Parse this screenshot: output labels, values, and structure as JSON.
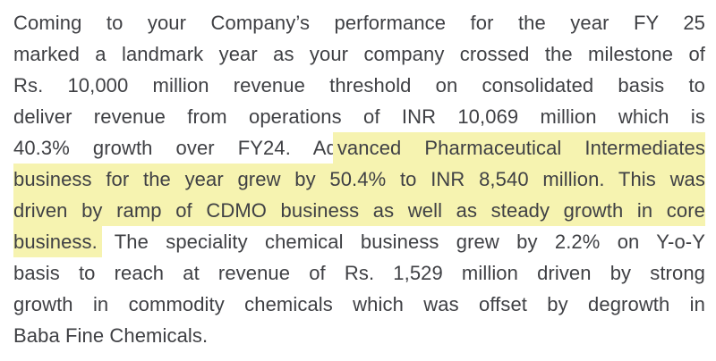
{
  "page": {
    "background_color": "#ffffff",
    "text_color": "#3f4044",
    "highlight_color": "#f6f3b0"
  },
  "paragraph": {
    "full_text": "Coming to your Company’s performance for the year FY 25 marked a landmark year as your company crossed the milestone of Rs. 10,000 million revenue threshold on consolidated basis to deliver revenue from operations of INR 10,069 million which is 40.3% growth over FY24. Advanced Pharmaceutical Intermediates business for the year grew by 50.4% to INR 8,540 million. This was driven by ramp of CDMO business as well as steady growth in core business. The speciality chemical business grew by 2.2% on Y-o-Y basis to reach at revenue of Rs. 1,529 million driven by strong growth in commodity chemicals which was offset by degrowth in Baba Fine Chemicals.",
    "highlighted_text": "vanced Pharmaceutical Intermediates business for the year grew by 50.4% to INR 8,540 million. This was driven by ramp of CDMO business as well as steady growth in core business.",
    "lines": [
      {
        "pre": "Coming to your Company’s performance for the year FY 25",
        "hl": "",
        "post": ""
      },
      {
        "pre": "marked a landmark year as your company crossed the milestone of",
        "hl": "",
        "post": ""
      },
      {
        "pre": "Rs. 10,000 million revenue threshold on consolidated basis to",
        "hl": "",
        "post": ""
      },
      {
        "pre": "deliver revenue from operations of INR 10,069 million which is",
        "hl": "",
        "post": ""
      },
      {
        "pre": "40.3% growth over FY24. Ad",
        "hl": "vanced Pharmaceutical Intermediates",
        "post": ""
      },
      {
        "pre": "",
        "hl": "business for the year grew by 50.4% to INR 8,540 million. This was",
        "post": ""
      },
      {
        "pre": "",
        "hl": "driven by ramp of CDMO business as well as steady growth in core",
        "post": ""
      },
      {
        "pre": "",
        "hl": "business.",
        "post": " The speciality chemical business grew by 2.2% on Y-o-Y"
      },
      {
        "pre": "basis to reach at revenue of Rs. 1,529 million driven by strong",
        "hl": "",
        "post": ""
      },
      {
        "pre": "growth in commodity chemicals which was offset by degrowth in",
        "hl": "",
        "post": ""
      },
      {
        "pre": "Baba Fine Chemicals.",
        "hl": "",
        "post": ""
      }
    ]
  }
}
